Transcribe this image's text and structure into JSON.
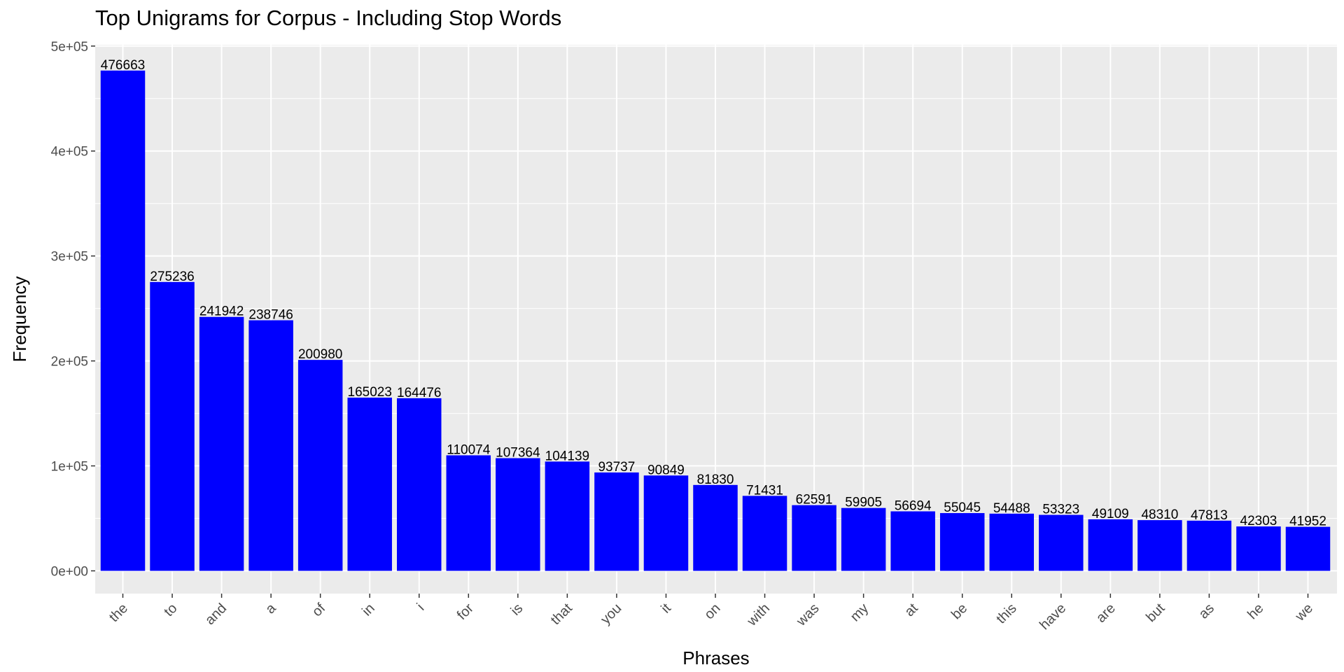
{
  "chart_data": {
    "type": "bar",
    "title": "Top Unigrams for Corpus - Including Stop Words",
    "xlabel": "Phrases",
    "ylabel": "Frequency",
    "ylim": [
      0,
      500000
    ],
    "yticks": [
      0,
      100000,
      200000,
      300000,
      400000,
      500000
    ],
    "ytick_labels": [
      "0e+00",
      "1e+05",
      "2e+05",
      "3e+05",
      "4e+05",
      "5e+05"
    ],
    "grid": true,
    "bar_color": "#0000ff",
    "panel_color": "#ebebeb",
    "categories": [
      "the",
      "to",
      "and",
      "a",
      "of",
      "in",
      "i",
      "for",
      "is",
      "that",
      "you",
      "it",
      "on",
      "with",
      "was",
      "my",
      "at",
      "be",
      "this",
      "have",
      "are",
      "but",
      "as",
      "he",
      "we"
    ],
    "values": [
      476663,
      275236,
      241942,
      238746,
      200980,
      165023,
      164476,
      110074,
      107364,
      104139,
      93737,
      90849,
      81830,
      71431,
      62591,
      59905,
      56694,
      55045,
      54488,
      53323,
      49109,
      48310,
      47813,
      42303,
      41952
    ],
    "data_labels": [
      "476663",
      "275236",
      "241942",
      "238746",
      "200980",
      "165023",
      "164476",
      "110074",
      "107364",
      "104139",
      "93737",
      "90849",
      "81830",
      "71431",
      "62591",
      "59905",
      "56694",
      "55045",
      "54488",
      "53323",
      "49109",
      "48310",
      "47813",
      "42303",
      "41952"
    ]
  }
}
